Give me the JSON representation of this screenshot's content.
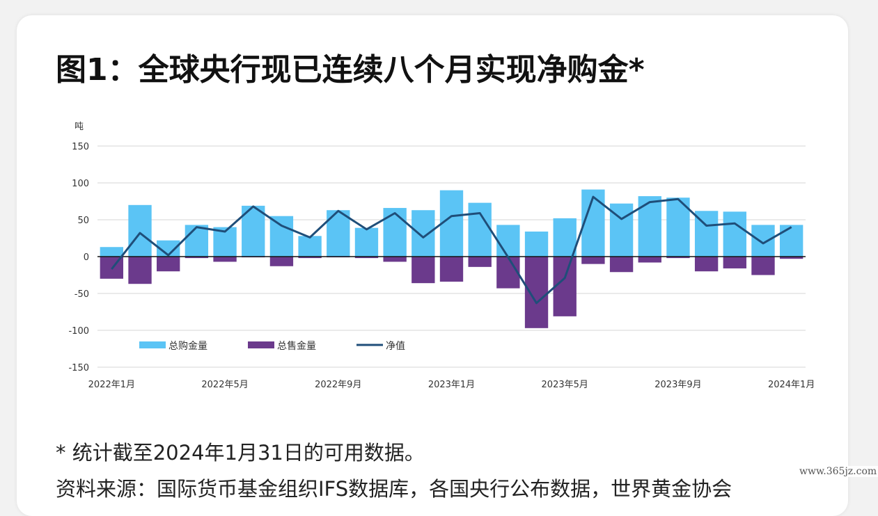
{
  "title": "图1：全球央行现已连续八个月实现净购金*",
  "note": "* 统计截至2024年1月31日的可用数据。",
  "source": "资料来源：国际货币基金组织IFS数据库，各国央行公布数据，世界黄金协会",
  "watermark": "www.365jz.com",
  "chart_data": {
    "type": "bar",
    "unit_label": "吨",
    "categories": [
      "2022年1月",
      "2022年2月",
      "2022年3月",
      "2022年4月",
      "2022年5月",
      "2022年6月",
      "2022年7月",
      "2022年8月",
      "2022年9月",
      "2022年10月",
      "2022年11月",
      "2022年12月",
      "2023年1月",
      "2023年2月",
      "2023年3月",
      "2023年4月",
      "2023年5月",
      "2023年6月",
      "2023年7月",
      "2023年8月",
      "2023年9月",
      "2023年10月",
      "2023年11月",
      "2023年12月",
      "2024年1月"
    ],
    "x_tick_labels": [
      {
        "index": 0,
        "label": "2022年1月"
      },
      {
        "index": 4,
        "label": "2022年5月"
      },
      {
        "index": 8,
        "label": "2022年9月"
      },
      {
        "index": 12,
        "label": "2023年1月"
      },
      {
        "index": 16,
        "label": "2023年5月"
      },
      {
        "index": 20,
        "label": "2023年9月"
      },
      {
        "index": 24,
        "label": "2024年1月"
      }
    ],
    "yticks": [
      150,
      100,
      50,
      0,
      -50,
      -100,
      -150
    ],
    "ylim": [
      -150,
      150
    ],
    "grid": true,
    "legend_position": "bottom-left",
    "series": [
      {
        "name": "总购金量",
        "type": "bar",
        "color": "#5bc4f5",
        "values": [
          13,
          70,
          22,
          43,
          40,
          69,
          55,
          28,
          63,
          39,
          66,
          63,
          90,
          73,
          43,
          34,
          52,
          91,
          72,
          82,
          80,
          62,
          61,
          43,
          43
        ]
      },
      {
        "name": "总售金量",
        "type": "bar",
        "color": "#6b3a8c",
        "values": [
          -30,
          -37,
          -20,
          -2,
          -7,
          -1,
          -13,
          -2,
          -1,
          -2,
          -7,
          -36,
          -34,
          -14,
          -43,
          -97,
          -81,
          -10,
          -21,
          -8,
          -2,
          -20,
          -16,
          -25,
          -3
        ]
      },
      {
        "name": "净值",
        "type": "line",
        "color": "#1f4e79",
        "values": [
          -17,
          32,
          2,
          40,
          34,
          68,
          42,
          26,
          62,
          37,
          59,
          26,
          55,
          59,
          -1,
          -63,
          -29,
          81,
          51,
          74,
          78,
          42,
          45,
          18,
          40
        ]
      }
    ]
  }
}
